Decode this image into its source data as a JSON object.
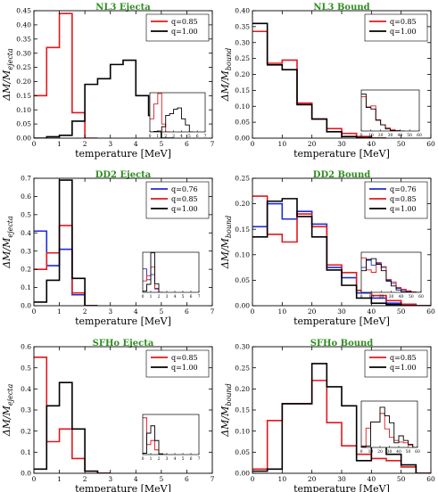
{
  "figure": {
    "xlabel": "temperature [MeV]"
  },
  "colors": {
    "blue": "#1f2bd6",
    "red": "#e0191e",
    "black": "#000000",
    "title": "#2f8f1f"
  },
  "chart_data": [
    {
      "id": "p1",
      "type": "line",
      "step": true,
      "title": "NL3 Ejecta",
      "xlabel": "temperature [MeV]",
      "ylabel": "ΔM/M_ejecta",
      "xlim": [
        0,
        7
      ],
      "ylim": [
        0,
        0.45
      ],
      "xticks": [
        0,
        1,
        2,
        3,
        4,
        5,
        6,
        7
      ],
      "yticks": [
        0.0,
        0.05,
        0.1,
        0.15,
        0.2,
        0.25,
        0.3,
        0.35,
        0.4,
        0.45
      ],
      "yticklabels": [
        "0.00",
        "0.05",
        "0.10",
        "0.15",
        "0.20",
        "0.25",
        "0.30",
        "0.35",
        "0.40",
        "0.45"
      ],
      "legend": "top-right",
      "series": [
        {
          "name": "q=0.85",
          "color": "red",
          "x": [
            0,
            0.5,
            1.0,
            1.5,
            2.0
          ],
          "values": [
            0.15,
            0.32,
            0.44,
            0.09,
            0.0
          ]
        },
        {
          "name": "q=1.00",
          "color": "black",
          "x": [
            0,
            0.5,
            1.0,
            1.5,
            2.0,
            2.5,
            3.0,
            3.5,
            4.0,
            4.5,
            5.0
          ],
          "values": [
            0.0,
            0.005,
            0.01,
            0.06,
            0.19,
            0.21,
            0.26,
            0.275,
            0.15,
            0.08,
            0.0
          ]
        }
      ],
      "inset": {
        "xlim": [
          0,
          7
        ],
        "ylim": [
          0,
          0.45
        ],
        "xticks": [
          0,
          1,
          2,
          3,
          4,
          5,
          6,
          7
        ]
      }
    },
    {
      "id": "p2",
      "type": "line",
      "step": true,
      "title": "NL3 Bound",
      "xlabel": "temperature [MeV]",
      "ylabel": "ΔM/M_bound",
      "xlim": [
        0,
        60
      ],
      "ylim": [
        0,
        0.4
      ],
      "xticks": [
        0,
        10,
        20,
        30,
        40,
        50,
        60
      ],
      "yticks": [
        0.0,
        0.05,
        0.1,
        0.15,
        0.2,
        0.25,
        0.3,
        0.35,
        0.4
      ],
      "yticklabels": [
        "0.00",
        "0.05",
        "0.10",
        "0.15",
        "0.20",
        "0.25",
        "0.30",
        "0.35",
        "0.40"
      ],
      "legend": "top-right",
      "series": [
        {
          "name": "q=0.85",
          "color": "red",
          "x": [
            0,
            5,
            10,
            15,
            20,
            25,
            30,
            35,
            40
          ],
          "values": [
            0.335,
            0.235,
            0.245,
            0.11,
            0.06,
            0.03,
            0.015,
            0.005,
            0.0
          ]
        },
        {
          "name": "q=1.00",
          "color": "black",
          "x": [
            0,
            5,
            10,
            15,
            20,
            25,
            30,
            35,
            40
          ],
          "values": [
            0.36,
            0.23,
            0.215,
            0.105,
            0.06,
            0.02,
            0.005,
            0.002,
            0.0
          ]
        }
      ],
      "inset": {
        "xlim": [
          0,
          60
        ],
        "ylim": [
          0,
          0.4
        ],
        "xticks": [
          0,
          10,
          20,
          30,
          40,
          50,
          60
        ]
      }
    },
    {
      "id": "p3",
      "type": "line",
      "step": true,
      "title": "DD2 Ejecta",
      "xlabel": "temperature [MeV]",
      "ylabel": "ΔM/M_ejecta",
      "xlim": [
        0,
        7
      ],
      "ylim": [
        0,
        0.7
      ],
      "xticks": [
        0,
        1,
        2,
        3,
        4,
        5,
        6,
        7
      ],
      "yticks": [
        0.0,
        0.1,
        0.2,
        0.3,
        0.4,
        0.5,
        0.6,
        0.7
      ],
      "yticklabels": [
        "0.0",
        "0.1",
        "0.2",
        "0.3",
        "0.4",
        "0.5",
        "0.6",
        "0.7"
      ],
      "legend": "top-right",
      "series": [
        {
          "name": "q=0.76",
          "color": "blue",
          "x": [
            0,
            0.5,
            1.0,
            1.5,
            2.0
          ],
          "values": [
            0.41,
            0.22,
            0.31,
            0.06,
            0.0
          ]
        },
        {
          "name": "q=0.85",
          "color": "red",
          "x": [
            0,
            0.5,
            1.0,
            1.5,
            2.0
          ],
          "values": [
            0.2,
            0.29,
            0.44,
            0.07,
            0.0
          ]
        },
        {
          "name": "q=1.00",
          "color": "black",
          "x": [
            0,
            0.5,
            1.0,
            1.5,
            2.0
          ],
          "values": [
            0.02,
            0.14,
            0.69,
            0.15,
            0.0
          ]
        }
      ],
      "inset": {
        "xlim": [
          0,
          7
        ],
        "ylim": [
          0,
          0.7
        ],
        "xticks": [
          0,
          1,
          2,
          3,
          4,
          5,
          6,
          7
        ]
      }
    },
    {
      "id": "p4",
      "type": "line",
      "step": true,
      "title": "DD2 Bound",
      "xlabel": "temperature [MeV]",
      "ylabel": "ΔM/M_bound",
      "xlim": [
        0,
        60
      ],
      "ylim": [
        0,
        0.25
      ],
      "xticks": [
        0,
        10,
        20,
        30,
        40,
        50,
        60
      ],
      "yticks": [
        0.0,
        0.05,
        0.1,
        0.15,
        0.2,
        0.25
      ],
      "yticklabels": [
        "0.00",
        "0.05",
        "0.10",
        "0.15",
        "0.20",
        "0.25"
      ],
      "legend": "top-right",
      "series": [
        {
          "name": "q=0.76",
          "color": "blue",
          "x": [
            0,
            5,
            10,
            15,
            20,
            25,
            30,
            35,
            40,
            45,
            50,
            55
          ],
          "values": [
            0.155,
            0.2,
            0.17,
            0.185,
            0.16,
            0.075,
            0.055,
            0.025,
            0.015,
            0.005,
            0.002,
            0.0
          ]
        },
        {
          "name": "q=0.85",
          "color": "red",
          "x": [
            0,
            5,
            10,
            15,
            20,
            25,
            30,
            35,
            40,
            45,
            50,
            55
          ],
          "values": [
            0.215,
            0.14,
            0.125,
            0.18,
            0.155,
            0.08,
            0.065,
            0.03,
            0.02,
            0.01,
            0.003,
            0.0
          ]
        },
        {
          "name": "q=1.00",
          "color": "black",
          "x": [
            0,
            5,
            10,
            15,
            20,
            25,
            30,
            35,
            40,
            45,
            50,
            55
          ],
          "values": [
            0.135,
            0.205,
            0.21,
            0.175,
            0.135,
            0.07,
            0.04,
            0.015,
            0.005,
            0.002,
            0.0,
            0.0
          ]
        }
      ],
      "inset": {
        "xlim": [
          0,
          60
        ],
        "ylim": [
          0,
          0.25
        ],
        "xticks": [
          0,
          10,
          20,
          30,
          40,
          50,
          60
        ]
      }
    },
    {
      "id": "p5",
      "type": "line",
      "step": true,
      "title": "SFHo Ejecta",
      "xlabel": "temperature [MeV]",
      "ylabel": "ΔM/M_ejecta",
      "xlim": [
        0,
        7
      ],
      "ylim": [
        0,
        0.6
      ],
      "xticks": [
        0,
        1,
        2,
        3,
        4,
        5,
        6,
        7
      ],
      "yticks": [
        0.0,
        0.1,
        0.2,
        0.3,
        0.4,
        0.5,
        0.6
      ],
      "yticklabels": [
        "0.0",
        "0.1",
        "0.2",
        "0.3",
        "0.4",
        "0.5",
        "0.6"
      ],
      "legend": "top-right",
      "series": [
        {
          "name": "q=0.85",
          "color": "red",
          "x": [
            0,
            0.5,
            1.0,
            1.5,
            2.0,
            2.5
          ],
          "values": [
            0.55,
            0.15,
            0.21,
            0.07,
            0.01,
            0.0
          ]
        },
        {
          "name": "q=1.00",
          "color": "black",
          "x": [
            0,
            0.5,
            1.0,
            1.5,
            2.0,
            2.5
          ],
          "values": [
            0.02,
            0.32,
            0.43,
            0.21,
            0.01,
            0.0
          ]
        }
      ],
      "inset": {
        "xlim": [
          0,
          7
        ],
        "ylim": [
          0,
          0.6
        ],
        "xticks": [
          0,
          1,
          2,
          3,
          4,
          5,
          6,
          7
        ]
      }
    },
    {
      "id": "p6",
      "type": "line",
      "step": true,
      "title": "SFHo Bound",
      "xlabel": "temperature [MeV]",
      "ylabel": "ΔM/M_bound",
      "xlim": [
        0,
        60
      ],
      "ylim": [
        0,
        0.3
      ],
      "xticks": [
        0,
        10,
        20,
        30,
        40,
        50,
        60
      ],
      "yticks": [
        0.0,
        0.05,
        0.1,
        0.15,
        0.2,
        0.25,
        0.3
      ],
      "yticklabels": [
        "0.00",
        "0.05",
        "0.10",
        "0.15",
        "0.20",
        "0.25",
        "0.30"
      ],
      "legend": "top-right",
      "series": [
        {
          "name": "q=0.85",
          "color": "red",
          "x": [
            0,
            5,
            10,
            15,
            20,
            25,
            30,
            35,
            40,
            45,
            50,
            55
          ],
          "values": [
            0.01,
            0.125,
            0.165,
            0.165,
            0.22,
            0.12,
            0.065,
            0.045,
            0.035,
            0.03,
            0.015,
            0.0
          ]
        },
        {
          "name": "q=1.00",
          "color": "black",
          "x": [
            0,
            5,
            10,
            15,
            20,
            25,
            30,
            35,
            40,
            45,
            50,
            55
          ],
          "values": [
            0.005,
            0.01,
            0.165,
            0.165,
            0.26,
            0.205,
            0.16,
            0.03,
            0.075,
            0.045,
            0.02,
            0.0
          ]
        }
      ],
      "inset": {
        "xlim": [
          0,
          60
        ],
        "ylim": [
          0,
          0.3
        ],
        "xticks": [
          0,
          10,
          20,
          30,
          40,
          50,
          60
        ]
      }
    }
  ]
}
